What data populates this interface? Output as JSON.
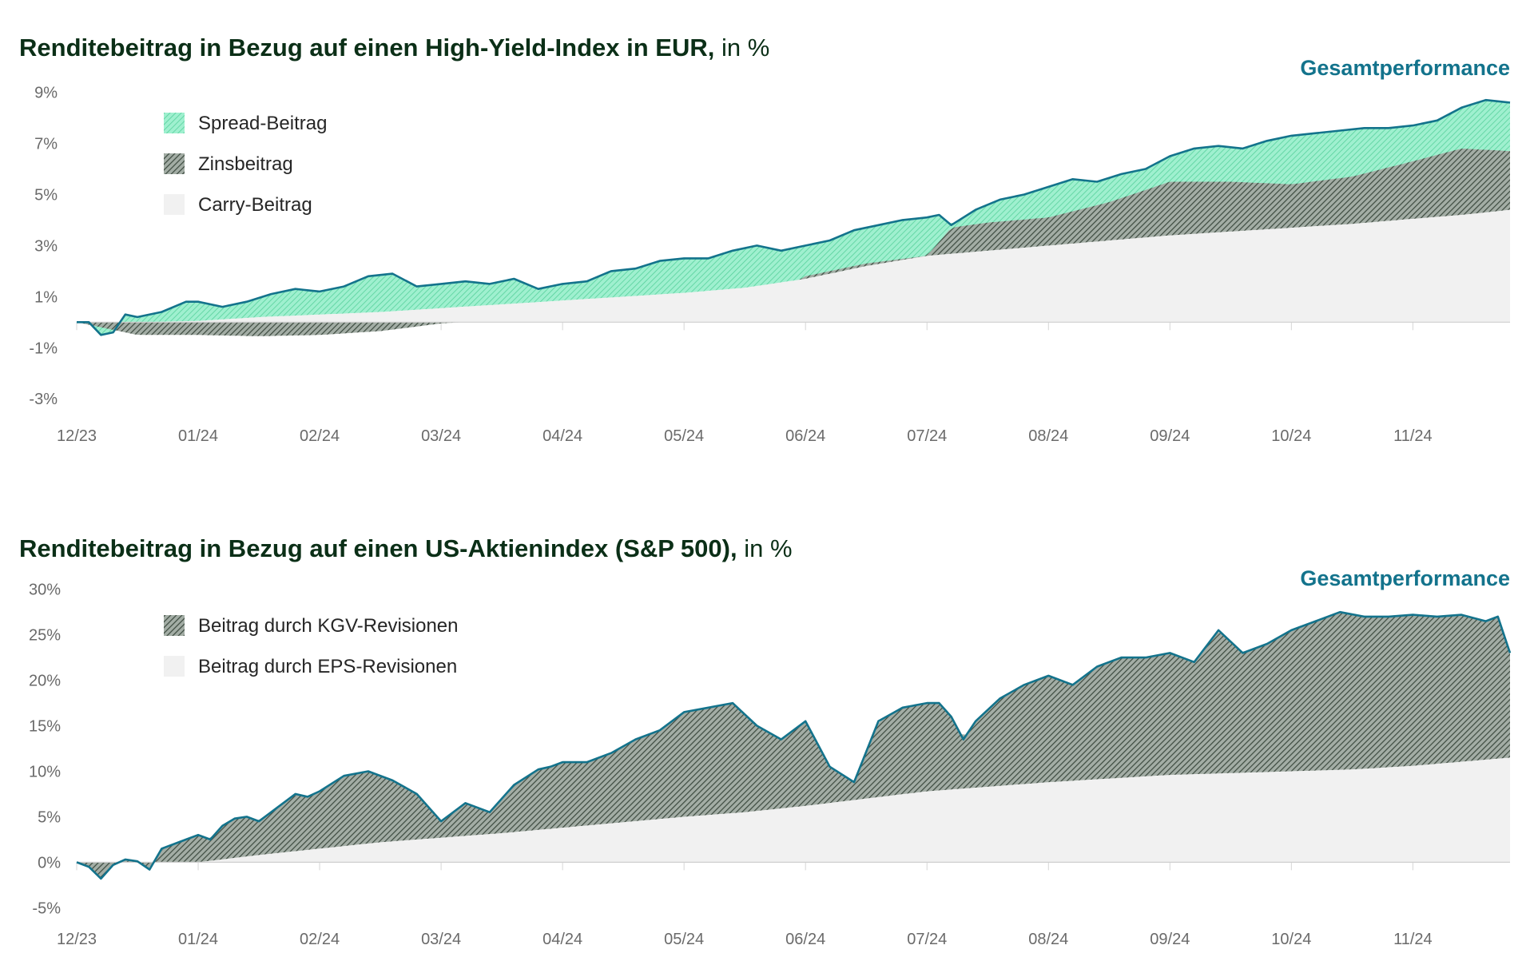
{
  "colors": {
    "total_line": "#13738c",
    "spread": "#8ee8c4",
    "interest": "#5d6b60",
    "carry": "#f1f1f1",
    "kgv": "#5d6b60",
    "eps": "#f1f1f1",
    "title": "#0b2f17"
  },
  "chart_data": [
    {
      "type": "area",
      "title": "Renditebeitrag in Bezug auf einen High-Yield-Index in EUR,",
      "title_unit": " in %",
      "total_label": "Gesamtperformance",
      "x_ticks": [
        "12/23",
        "01/24",
        "02/24",
        "03/24",
        "04/24",
        "05/24",
        "06/24",
        "07/24",
        "08/24",
        "09/24",
        "10/24",
        "11/24"
      ],
      "y_ticks": [
        "9%",
        "7%",
        "5%",
        "3%",
        "1%",
        "-1%",
        "-3%"
      ],
      "y_tick_values": [
        9,
        7,
        5,
        3,
        1,
        -1,
        -3
      ],
      "ylim": [
        -3.4,
        9.3
      ],
      "xlim": [
        0,
        11.8
      ],
      "legend": [
        "Spread-Beitrag",
        "Zinsbeitrag",
        "Carry-Beitrag"
      ],
      "series": [
        {
          "name": "Carry-Beitrag",
          "x": [
            0,
            0.5,
            1,
            1.5,
            2,
            2.5,
            3,
            3.5,
            4,
            4.5,
            5,
            5.5,
            6,
            6.5,
            7,
            7.5,
            8,
            8.5,
            9,
            9.5,
            10,
            10.5,
            11,
            11.4,
            11.8
          ],
          "values": [
            0,
            0,
            0.05,
            0.2,
            0.3,
            0.4,
            0.55,
            0.7,
            0.85,
            1.0,
            1.15,
            1.35,
            1.7,
            2.2,
            2.6,
            2.8,
            3.0,
            3.2,
            3.4,
            3.55,
            3.7,
            3.85,
            4.05,
            4.2,
            4.4
          ]
        },
        {
          "name": "Zinsbeitrag",
          "x": [
            0,
            0.5,
            1,
            1.5,
            2,
            2.5,
            3,
            3.5,
            4,
            4.5,
            5,
            5.5,
            6,
            6.5,
            7,
            7.2,
            7.5,
            8,
            8.5,
            9,
            9.5,
            10,
            10.5,
            11,
            11.4,
            11.8
          ],
          "values": [
            0,
            -0.5,
            -0.5,
            -0.55,
            -0.5,
            -0.35,
            -0.05,
            0.1,
            0.4,
            0.6,
            0.75,
            0.5,
            1.8,
            2.3,
            2.6,
            3.7,
            3.9,
            4.1,
            4.7,
            5.5,
            5.5,
            5.4,
            5.7,
            6.3,
            6.8,
            6.7
          ]
        },
        {
          "name": "Gesamtperformance",
          "x": [
            0,
            0.1,
            0.2,
            0.3,
            0.4,
            0.5,
            0.7,
            0.9,
            1.0,
            1.2,
            1.4,
            1.6,
            1.8,
            2.0,
            2.2,
            2.4,
            2.6,
            2.8,
            3.0,
            3.2,
            3.4,
            3.6,
            3.8,
            4.0,
            4.2,
            4.4,
            4.6,
            4.8,
            5.0,
            5.2,
            5.4,
            5.6,
            5.8,
            6.0,
            6.2,
            6.4,
            6.6,
            6.8,
            7.0,
            7.1,
            7.2,
            7.4,
            7.6,
            7.8,
            8.0,
            8.2,
            8.4,
            8.6,
            8.8,
            9.0,
            9.2,
            9.4,
            9.6,
            9.8,
            10.0,
            10.2,
            10.4,
            10.6,
            10.8,
            11.0,
            11.2,
            11.4,
            11.6,
            11.8
          ],
          "values": [
            0,
            0,
            -0.5,
            -0.4,
            0.3,
            0.2,
            0.4,
            0.8,
            0.8,
            0.6,
            0.8,
            1.1,
            1.3,
            1.2,
            1.4,
            1.8,
            1.9,
            1.4,
            1.5,
            1.6,
            1.5,
            1.7,
            1.3,
            1.5,
            1.6,
            2.0,
            2.1,
            2.4,
            2.5,
            2.5,
            2.8,
            3.0,
            2.8,
            3.0,
            3.2,
            3.6,
            3.8,
            4.0,
            4.1,
            4.2,
            3.8,
            4.4,
            4.8,
            5.0,
            5.3,
            5.6,
            5.5,
            5.8,
            6.0,
            6.5,
            6.8,
            6.9,
            6.8,
            7.1,
            7.3,
            7.4,
            7.5,
            7.6,
            7.6,
            7.7,
            7.9,
            8.4,
            8.7,
            8.6
          ]
        }
      ]
    },
    {
      "type": "area",
      "title": "Renditebeitrag in Bezug auf einen US-Aktienindex (S&P 500),",
      "title_unit": " in %",
      "total_label": "Gesamtperformance",
      "x_ticks": [
        "12/23",
        "01/24",
        "02/24",
        "03/24",
        "04/24",
        "05/24",
        "06/24",
        "07/24",
        "08/24",
        "09/24",
        "10/24",
        "11/24"
      ],
      "y_ticks": [
        "30%",
        "25%",
        "20%",
        "15%",
        "10%",
        "5%",
        "0%",
        "-5%"
      ],
      "y_tick_values": [
        30,
        25,
        20,
        15,
        10,
        5,
        0,
        -5
      ],
      "ylim": [
        -5.5,
        30.5
      ],
      "xlim": [
        0,
        11.8
      ],
      "legend": [
        "Beitrag durch KGV-Revisionen",
        "Beitrag durch EPS-Revisionen"
      ],
      "series": [
        {
          "name": "Beitrag durch EPS-Revisionen",
          "x": [
            0,
            0.5,
            1,
            1.5,
            2,
            2.5,
            3,
            3.5,
            4,
            4.5,
            5,
            5.5,
            6,
            6.5,
            7,
            7.5,
            8,
            8.5,
            9,
            9.5,
            10,
            10.5,
            11,
            11.8
          ],
          "values": [
            0,
            0,
            0,
            0.8,
            1.5,
            2.2,
            2.7,
            3.2,
            3.8,
            4.4,
            5.0,
            5.5,
            6.2,
            7.0,
            7.8,
            8.3,
            8.8,
            9.2,
            9.6,
            9.8,
            10.0,
            10.2,
            10.6,
            11.5
          ]
        },
        {
          "name": "Gesamtperformance",
          "x": [
            0,
            0.1,
            0.2,
            0.3,
            0.4,
            0.5,
            0.6,
            0.7,
            0.8,
            0.9,
            1.0,
            1.1,
            1.2,
            1.3,
            1.4,
            1.5,
            1.6,
            1.7,
            1.8,
            1.9,
            2.0,
            2.2,
            2.4,
            2.6,
            2.8,
            3.0,
            3.2,
            3.4,
            3.6,
            3.8,
            3.9,
            4.0,
            4.2,
            4.4,
            4.6,
            4.8,
            5.0,
            5.2,
            5.4,
            5.6,
            5.8,
            6.0,
            6.2,
            6.4,
            6.6,
            6.8,
            7.0,
            7.1,
            7.2,
            7.3,
            7.4,
            7.6,
            7.8,
            8.0,
            8.2,
            8.4,
            8.6,
            8.8,
            9.0,
            9.2,
            9.4,
            9.6,
            9.8,
            10.0,
            10.2,
            10.4,
            10.6,
            10.8,
            11.0,
            11.2,
            11.4,
            11.6,
            11.7,
            11.8
          ],
          "values": [
            0,
            -0.5,
            -1.8,
            -0.3,
            0.3,
            0.1,
            -0.8,
            1.5,
            2.0,
            2.5,
            3.0,
            2.5,
            4.0,
            4.8,
            5.0,
            4.5,
            5.5,
            6.5,
            7.5,
            7.2,
            7.8,
            9.5,
            10.0,
            9.0,
            7.5,
            4.5,
            6.5,
            5.5,
            8.5,
            10.2,
            10.5,
            11.0,
            11.0,
            12.0,
            13.5,
            14.5,
            16.5,
            17.0,
            17.5,
            15.0,
            13.5,
            15.5,
            10.5,
            8.8,
            15.5,
            17.0,
            17.5,
            17.5,
            16.0,
            13.5,
            15.5,
            18.0,
            19.5,
            20.5,
            19.5,
            21.5,
            22.5,
            22.5,
            23.0,
            22.0,
            25.5,
            23.0,
            24.0,
            25.5,
            26.5,
            27.5,
            27.0,
            27.0,
            27.2,
            27.0,
            27.2,
            26.5,
            27.0,
            23.0
          ]
        }
      ]
    }
  ]
}
